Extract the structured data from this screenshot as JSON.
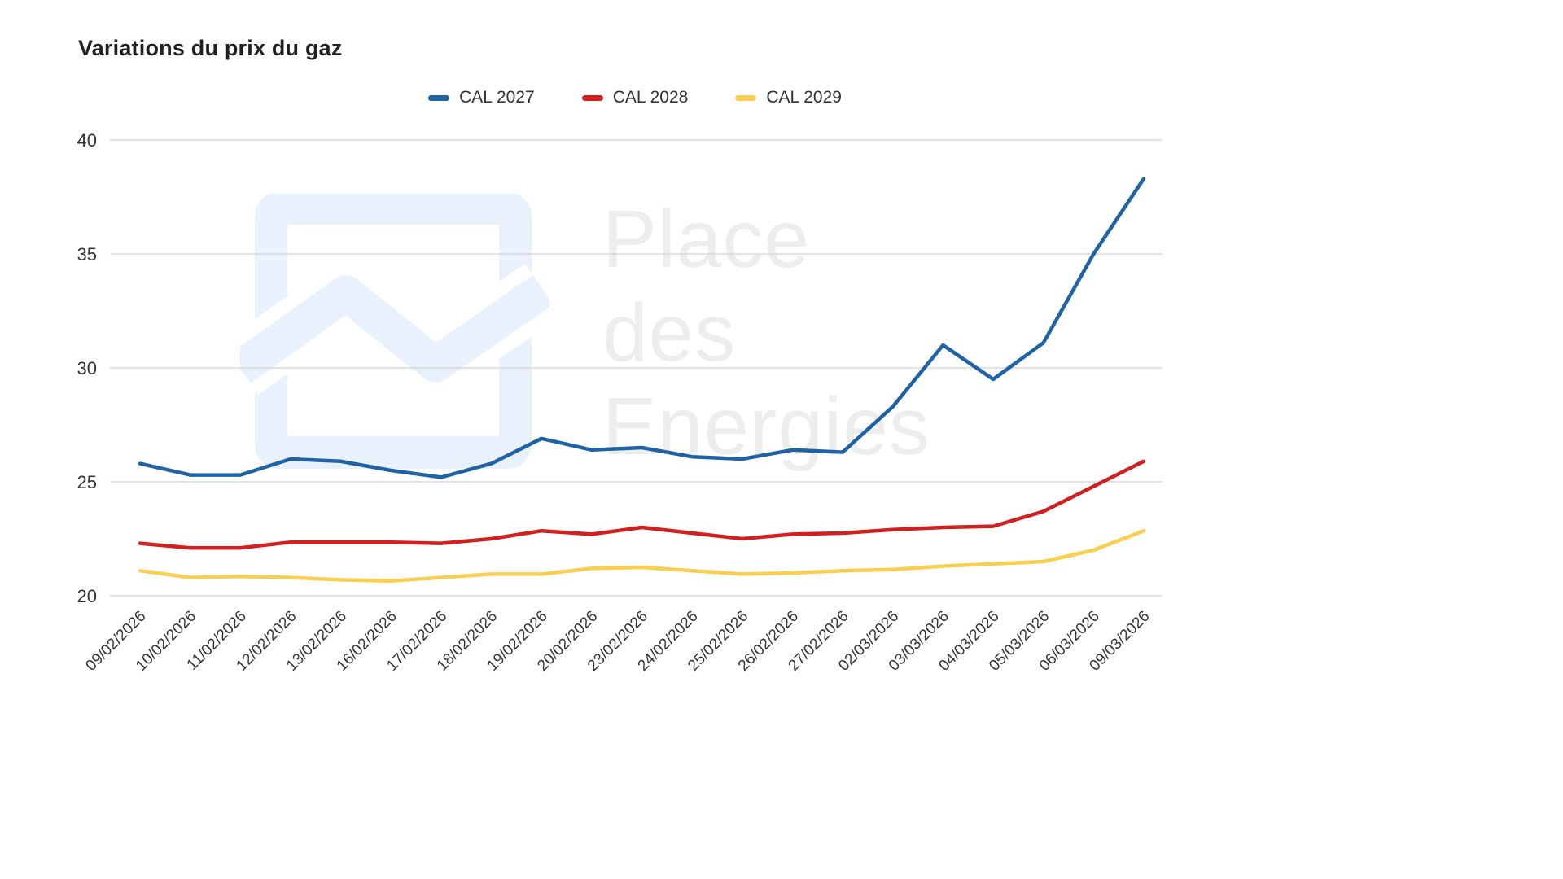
{
  "title": "Variations du prix du gaz",
  "watermark": {
    "line1": "Place",
    "line2": "des",
    "line3": "Energies"
  },
  "colors": {
    "grid": "#d9d9d9",
    "axis_text": "#333333",
    "title_text": "#212121",
    "watermark_text": "#ededed",
    "watermark_logo": "#e9f1fc"
  },
  "chart_data": {
    "type": "line",
    "title": "Variations du prix du gaz",
    "xlabel": "",
    "ylabel": "",
    "ylim": [
      20,
      40
    ],
    "yticks": [
      20,
      25,
      30,
      35,
      40
    ],
    "grid": true,
    "legend_position": "top",
    "x": [
      "09/02/2026",
      "10/02/2026",
      "11/02/2026",
      "12/02/2026",
      "13/02/2026",
      "16/02/2026",
      "17/02/2026",
      "18/02/2026",
      "19/02/2026",
      "20/02/2026",
      "23/02/2026",
      "24/02/2026",
      "25/02/2026",
      "26/02/2026",
      "27/02/2026",
      "02/03/2026",
      "03/03/2026",
      "04/03/2026",
      "05/03/2026",
      "06/03/2026",
      "09/03/2026"
    ],
    "series": [
      {
        "name": "CAL 2027",
        "color": "#1f63a5",
        "values": [
          25.8,
          25.3,
          25.3,
          26.0,
          25.9,
          25.5,
          25.2,
          25.8,
          26.9,
          26.4,
          26.5,
          26.1,
          26.0,
          26.4,
          26.3,
          28.3,
          31.0,
          29.5,
          31.1,
          35.0,
          38.3
        ]
      },
      {
        "name": "CAL 2028",
        "color": "#d21f1f",
        "values": [
          22.3,
          22.1,
          22.1,
          22.35,
          22.35,
          22.35,
          22.3,
          22.5,
          22.85,
          22.7,
          23.0,
          22.75,
          22.5,
          22.7,
          22.75,
          22.9,
          23.0,
          23.05,
          23.7,
          24.8,
          25.9
        ]
      },
      {
        "name": "CAL 2029",
        "color": "#f9cf52",
        "values": [
          21.1,
          20.8,
          20.85,
          20.8,
          20.7,
          20.65,
          20.8,
          20.95,
          20.95,
          21.2,
          21.25,
          21.1,
          20.95,
          21.0,
          21.1,
          21.15,
          21.3,
          21.4,
          21.5,
          22.0,
          22.85
        ]
      }
    ]
  }
}
